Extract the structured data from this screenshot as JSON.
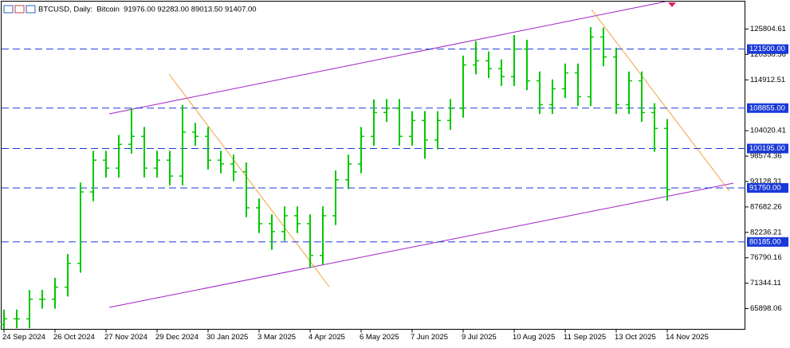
{
  "chart_data": {
    "type": "ohlc",
    "title": "BTCUSD, Daily:  Bitcoin  91976.00 92283.00 89013.50 91407.00",
    "categories": [
      "24 Sep 2024",
      null,
      null,
      null,
      "26 Oct 2024",
      null,
      null,
      null,
      "27 Nov 2024",
      null,
      null,
      null,
      "29 Dec 2024",
      null,
      null,
      null,
      "30 Jan 2025",
      null,
      null,
      null,
      "3 Mar 2025",
      null,
      null,
      null,
      "4 Apr 2025",
      null,
      null,
      null,
      "6 May 2025",
      null,
      null,
      null,
      "7 Jun 2025",
      null,
      null,
      null,
      "9 Jul 2025",
      null,
      null,
      null,
      "10 Aug 2025",
      null,
      null,
      null,
      "11 Sep 2025",
      null,
      null,
      null,
      "13 Oct 2025",
      null,
      null,
      null,
      "14 Nov 2025"
    ],
    "open": [
      62500,
      63700,
      63700,
      67900,
      67900,
      70500,
      75600,
      90900,
      97700,
      96000,
      101100,
      102800,
      96000,
      97700,
      94300,
      103700,
      102800,
      97700,
      96900,
      95200,
      87500,
      84100,
      82400,
      85800,
      84100,
      77300,
      85800,
      93500,
      96900,
      102800,
      107900,
      108800,
      102800,
      106200,
      102000,
      106200,
      108800,
      118100,
      119000,
      117300,
      115600,
      121500,
      114700,
      109600,
      113000,
      116400,
      111300,
      124100,
      119800,
      109600,
      114700,
      107900,
      104500
    ],
    "high": [
      65700,
      65700,
      69900,
      69900,
      72500,
      77600,
      92900,
      99700,
      99700,
      103100,
      108800,
      104800,
      99700,
      99700,
      109500,
      105700,
      104800,
      99700,
      98900,
      97200,
      89500,
      86100,
      87800,
      87800,
      86100,
      87800,
      95500,
      98900,
      104800,
      110700,
      110800,
      110800,
      108200,
      108200,
      108200,
      110800,
      120100,
      123200,
      121000,
      119300,
      124500,
      123500,
      116700,
      115000,
      118400,
      118400,
      126200,
      126100,
      121800,
      116700,
      116700,
      109900,
      106500
    ],
    "low": [
      61500,
      61700,
      61700,
      65900,
      65900,
      68500,
      73600,
      88900,
      94000,
      94000,
      99100,
      94000,
      94000,
      92300,
      92300,
      100800,
      95700,
      94900,
      93200,
      85500,
      82100,
      78500,
      80400,
      82100,
      74600,
      75300,
      83800,
      91500,
      94900,
      100800,
      105900,
      100800,
      100800,
      98000,
      100000,
      104200,
      106800,
      116100,
      115300,
      113600,
      113600,
      112700,
      107600,
      107600,
      111000,
      109300,
      109300,
      117800,
      107600,
      107600,
      105900,
      99500,
      89000
    ],
    "close": [
      63700,
      63700,
      67900,
      67900,
      70500,
      75600,
      90900,
      97700,
      96000,
      101100,
      102800,
      96000,
      97700,
      94300,
      103700,
      102800,
      97700,
      96900,
      95200,
      87500,
      84100,
      82400,
      85800,
      84100,
      77300,
      85800,
      93500,
      96900,
      102800,
      107900,
      108800,
      102800,
      106200,
      102000,
      106200,
      108800,
      118100,
      119000,
      117300,
      115600,
      121500,
      114700,
      109600,
      113000,
      116400,
      111300,
      124100,
      119800,
      109600,
      114700,
      107900,
      104500,
      91400
    ],
    "color": "#00c800",
    "ylim": [
      61470,
      131760
    ],
    "yticks": [
      125804.61,
      120358.56,
      114912.51,
      104020.41,
      98574.36,
      93128.31,
      87682.26,
      82236.21,
      76790.16,
      71344.11,
      65898.06
    ],
    "levels": [
      {
        "value": 121500,
        "label": "121500.00"
      },
      {
        "value": 108855,
        "label": "108855.00"
      },
      {
        "value": 100195,
        "label": "100195.00"
      },
      {
        "value": 91750,
        "label": "91750.00"
      },
      {
        "value": 80185,
        "label": "80185.00"
      }
    ],
    "level_color": "#1a3ad8"
  }
}
